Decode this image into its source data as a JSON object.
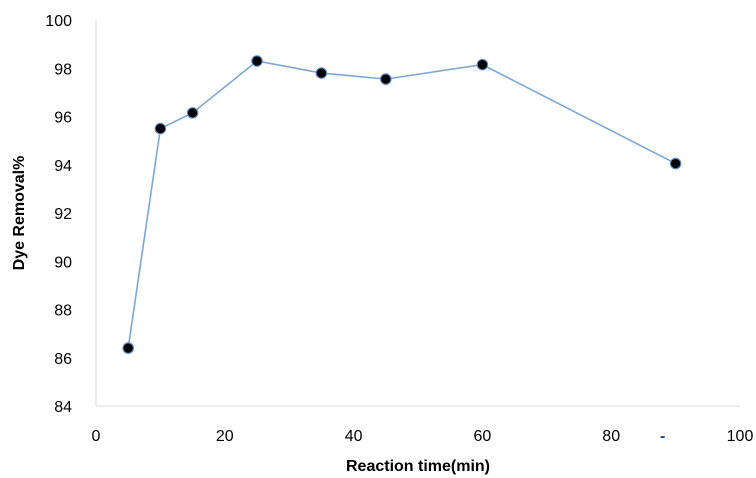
{
  "chart_data": {
    "type": "scatter",
    "title": "",
    "xlabel": "Reaction time(min)",
    "ylabel": "Dye Removal%",
    "xlim": [
      0,
      100
    ],
    "ylim": [
      84,
      100
    ],
    "xticks": [
      0,
      20,
      40,
      60,
      80,
      100
    ],
    "yticks": [
      84,
      86,
      88,
      90,
      92,
      94,
      96,
      98,
      100
    ],
    "x_tick_labels": [
      "0",
      "20",
      "40",
      "60",
      "80",
      "100"
    ],
    "y_tick_labels": [
      "84",
      "86",
      "88",
      "90",
      "92",
      "94",
      "96",
      "98",
      "100"
    ],
    "grid": false,
    "legend": "none",
    "series": [
      {
        "x": [
          5,
          10,
          15,
          25,
          35,
          45,
          60,
          90
        ],
        "y": [
          86.4,
          95.5,
          96.15,
          98.3,
          97.8,
          97.55,
          98.15,
          94.05
        ],
        "line_color": "#7aa7d6",
        "marker_color": "#000000"
      }
    ],
    "annotations": [
      {
        "text": "-",
        "x": 88,
        "y": 84,
        "color": "#1f3a93"
      }
    ]
  }
}
